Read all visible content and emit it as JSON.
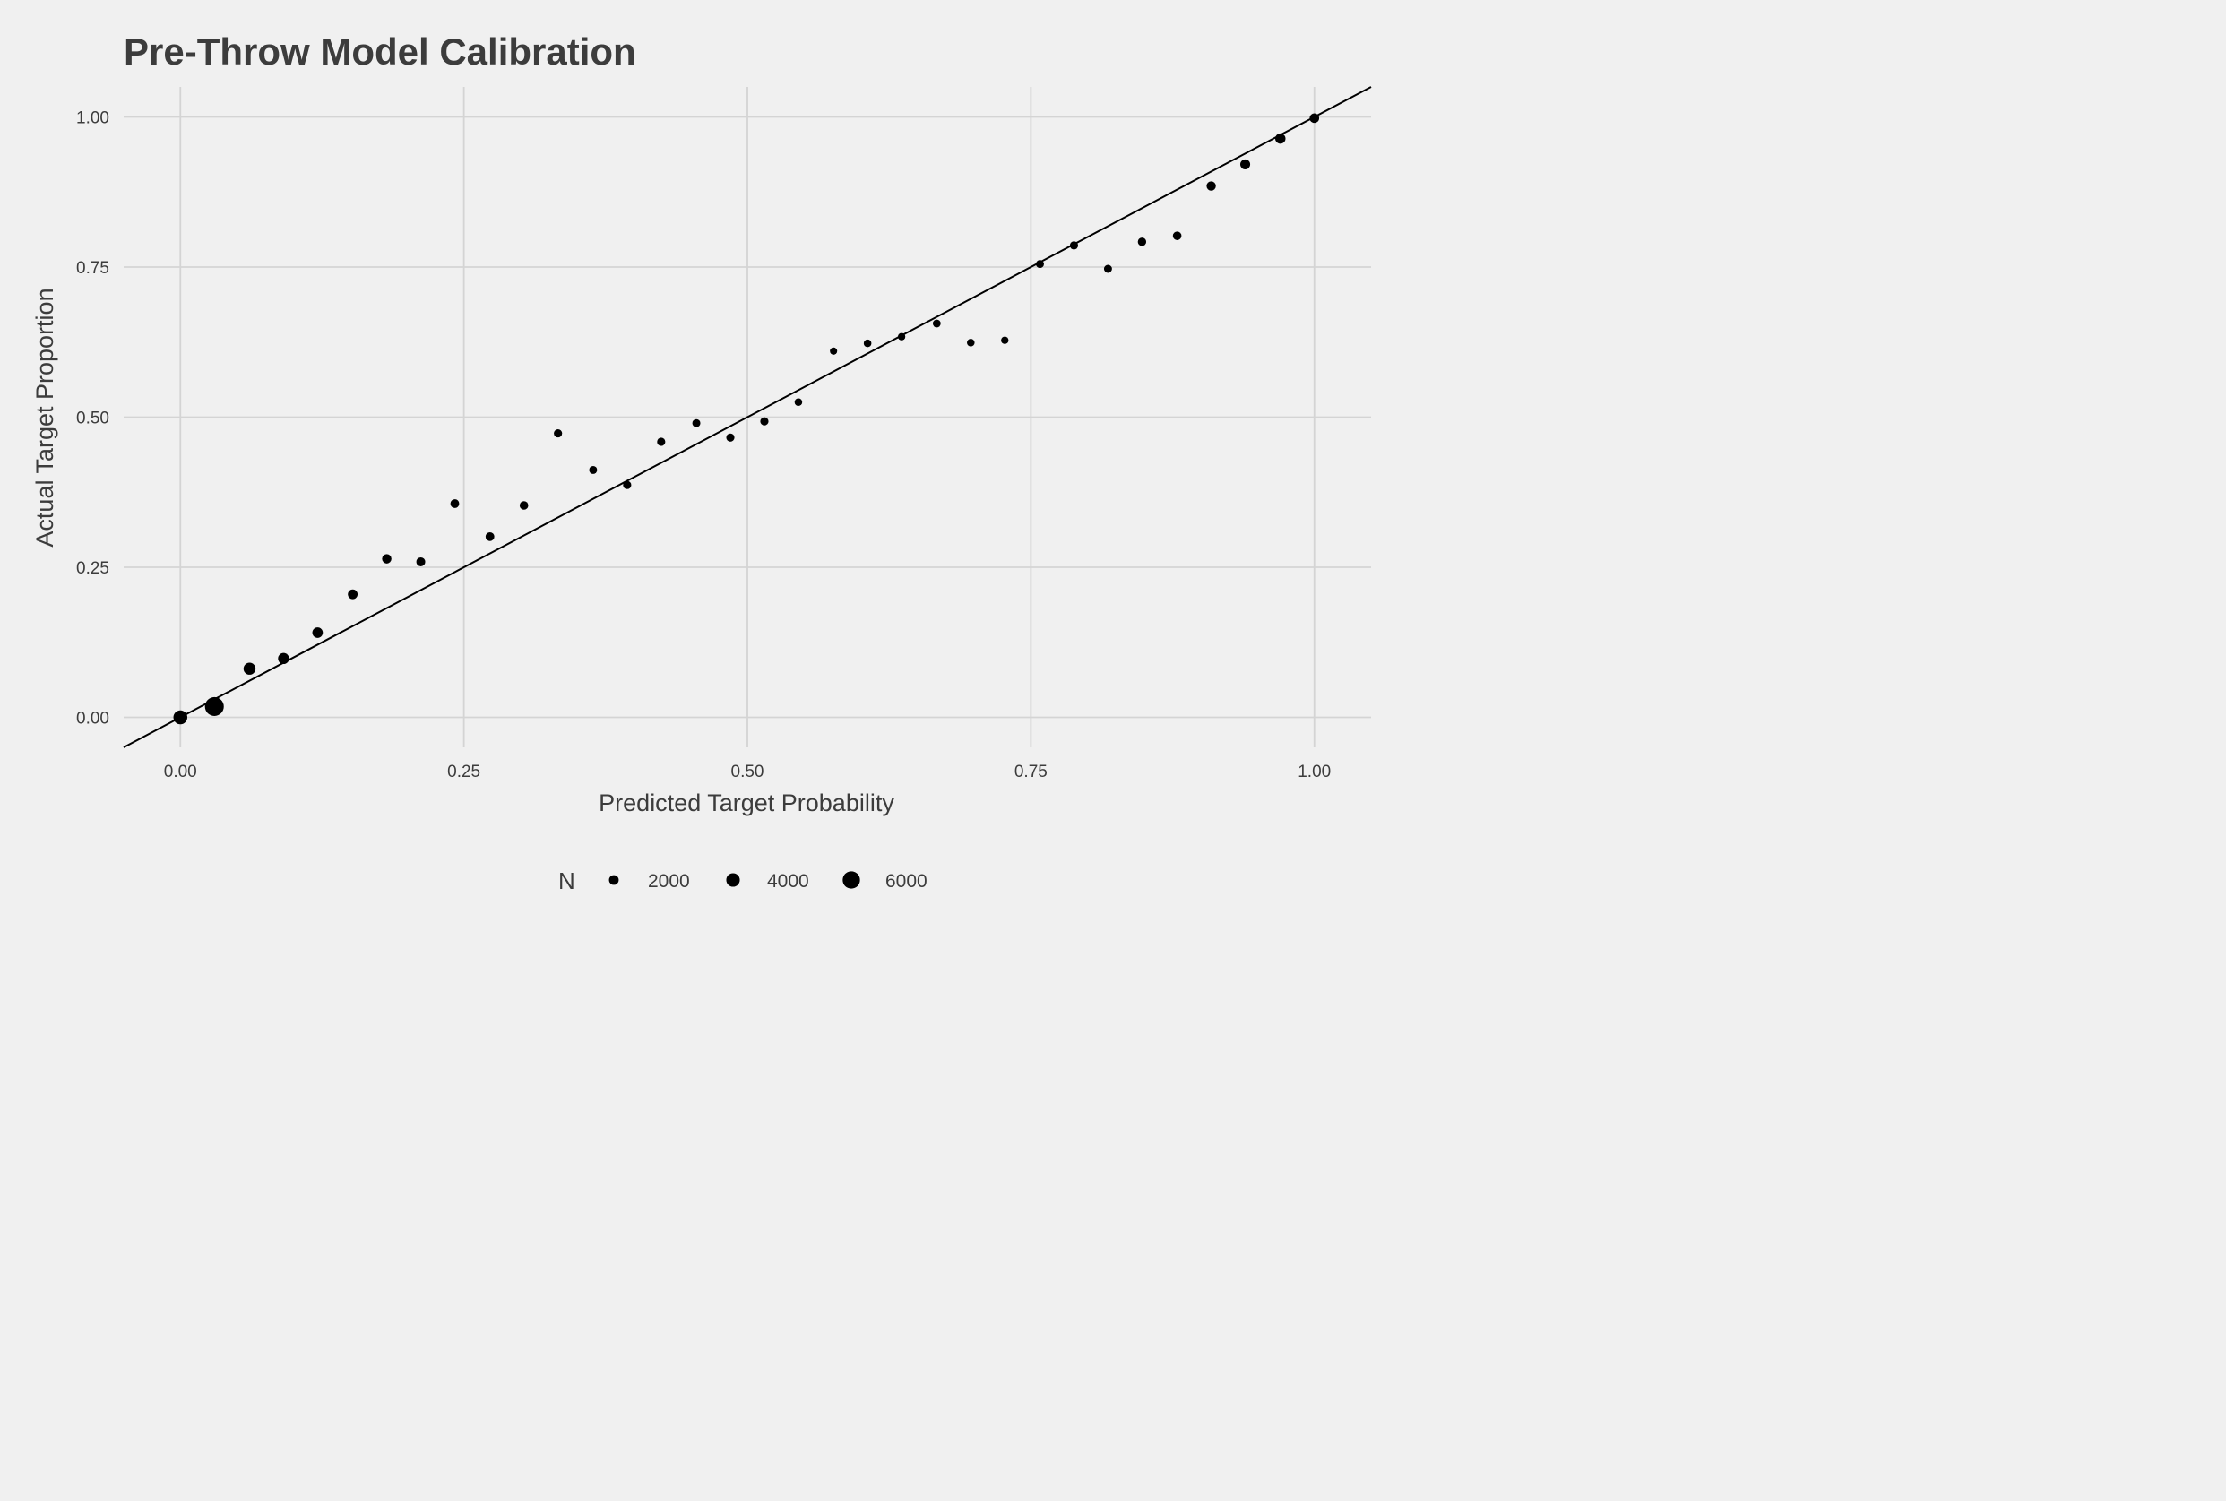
{
  "chart_data": {
    "type": "scatter",
    "title": "Pre-Throw Model Calibration",
    "xlabel": "Predicted Target Probability",
    "ylabel": "Actual Target Proportion",
    "xlim": [
      -0.05,
      1.05
    ],
    "ylim": [
      -0.05,
      1.05
    ],
    "x_ticks": [
      0.0,
      0.25,
      0.5,
      0.75,
      1.0
    ],
    "x_tick_labels": [
      "0.00",
      "0.25",
      "0.50",
      "0.75",
      "1.00"
    ],
    "y_ticks": [
      0.0,
      0.25,
      0.5,
      0.75,
      1.0
    ],
    "y_tick_labels": [
      "0.00",
      "0.25",
      "0.50",
      "0.75",
      "1.00"
    ],
    "grid": true,
    "reference_line": {
      "type": "identity",
      "slope": 1,
      "intercept": 0
    },
    "point_color": "#000000",
    "points": [
      {
        "x": 0.0,
        "y": 0.0,
        "n": 4200
      },
      {
        "x": 0.03,
        "y": 0.018,
        "n": 6800
      },
      {
        "x": 0.061,
        "y": 0.081,
        "n": 3200
      },
      {
        "x": 0.091,
        "y": 0.098,
        "n": 2700
      },
      {
        "x": 0.121,
        "y": 0.141,
        "n": 2400
      },
      {
        "x": 0.152,
        "y": 0.205,
        "n": 2000
      },
      {
        "x": 0.182,
        "y": 0.264,
        "n": 1800
      },
      {
        "x": 0.212,
        "y": 0.259,
        "n": 1600
      },
      {
        "x": 0.242,
        "y": 0.356,
        "n": 1500
      },
      {
        "x": 0.273,
        "y": 0.301,
        "n": 1500
      },
      {
        "x": 0.303,
        "y": 0.353,
        "n": 1400
      },
      {
        "x": 0.333,
        "y": 0.473,
        "n": 1200
      },
      {
        "x": 0.364,
        "y": 0.412,
        "n": 1100
      },
      {
        "x": 0.394,
        "y": 0.387,
        "n": 1200
      },
      {
        "x": 0.424,
        "y": 0.459,
        "n": 1200
      },
      {
        "x": 0.455,
        "y": 0.49,
        "n": 1100
      },
      {
        "x": 0.485,
        "y": 0.466,
        "n": 1200
      },
      {
        "x": 0.515,
        "y": 0.493,
        "n": 1200
      },
      {
        "x": 0.545,
        "y": 0.525,
        "n": 900
      },
      {
        "x": 0.576,
        "y": 0.61,
        "n": 700
      },
      {
        "x": 0.606,
        "y": 0.623,
        "n": 900
      },
      {
        "x": 0.636,
        "y": 0.634,
        "n": 800
      },
      {
        "x": 0.667,
        "y": 0.656,
        "n": 1000
      },
      {
        "x": 0.697,
        "y": 0.624,
        "n": 900
      },
      {
        "x": 0.727,
        "y": 0.628,
        "n": 800
      },
      {
        "x": 0.758,
        "y": 0.755,
        "n": 1100
      },
      {
        "x": 0.788,
        "y": 0.786,
        "n": 1200
      },
      {
        "x": 0.818,
        "y": 0.747,
        "n": 1100
      },
      {
        "x": 0.848,
        "y": 0.792,
        "n": 1300
      },
      {
        "x": 0.879,
        "y": 0.802,
        "n": 1400
      },
      {
        "x": 0.909,
        "y": 0.885,
        "n": 1800
      },
      {
        "x": 0.939,
        "y": 0.921,
        "n": 2100
      },
      {
        "x": 0.97,
        "y": 0.964,
        "n": 2300
      },
      {
        "x": 1.0,
        "y": 0.998,
        "n": 1900
      }
    ],
    "legend": {
      "title": "N",
      "position": "bottom",
      "entries": [
        {
          "label": "2000",
          "n": 2000
        },
        {
          "label": "4000",
          "n": 4000
        },
        {
          "label": "6000",
          "n": 6000
        }
      ]
    }
  }
}
